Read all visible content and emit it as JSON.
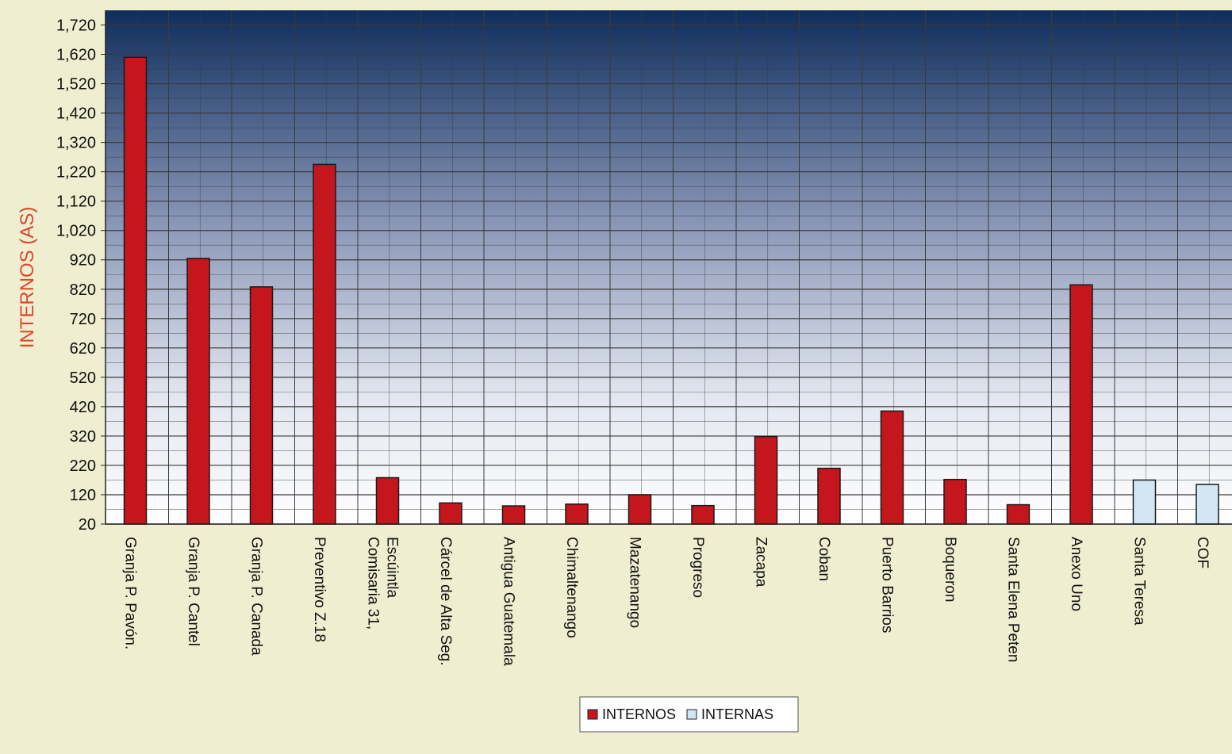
{
  "chart_data": {
    "type": "bar",
    "title": "",
    "ylabel": "INTERNOS (AS)",
    "xlabel": "",
    "ylim": [
      20,
      1770
    ],
    "yticks": [
      20,
      120,
      220,
      320,
      420,
      520,
      620,
      720,
      820,
      920,
      1020,
      1120,
      1220,
      1320,
      1420,
      1520,
      1620,
      1720
    ],
    "ytick_labels": [
      "20",
      "120",
      "220",
      "320",
      "420",
      "520",
      "620",
      "720",
      "820",
      "920",
      "1,020",
      "1,120",
      "1,220",
      "1,320",
      "1,420",
      "1,520",
      "1,620",
      "1,720"
    ],
    "categories": [
      "Granja P. Pavón.",
      "Granja P. Cantel",
      "Granja P. Canada",
      "Preventivo Z.18",
      [
        "Comisaria 31,",
        "Escúintla"
      ],
      "Cárcel de Alta Seg.",
      "Antigua Guatemala",
      "Chimaltenango",
      "Mazatenango",
      "Progreso",
      "Zacapa",
      "Coban",
      "Puerto Barrios",
      "Boqueron",
      "Santa Elena Peten",
      "Anexo Uno",
      "Santa Teresa",
      "COF"
    ],
    "series": [
      {
        "name": "INTERNOS",
        "color": "#c4161c",
        "values": [
          1610,
          925,
          828,
          1245,
          178,
          92,
          82,
          88,
          120,
          83,
          318,
          210,
          405,
          172,
          86,
          835,
          null,
          null
        ]
      },
      {
        "name": "INTERNAS",
        "color": "#d3e6f3",
        "values": [
          null,
          null,
          null,
          null,
          null,
          null,
          null,
          null,
          null,
          null,
          null,
          null,
          null,
          null,
          null,
          null,
          170,
          155
        ]
      }
    ],
    "grid": true,
    "legend_position": "bottom",
    "colors": {
      "page_background": "#f0eed0",
      "plot_gradient_top": "#0f2d5c",
      "plot_gradient_bottom": "#ffffff",
      "grid": "#3a3a3a",
      "ylabel": "#d9482b"
    }
  }
}
